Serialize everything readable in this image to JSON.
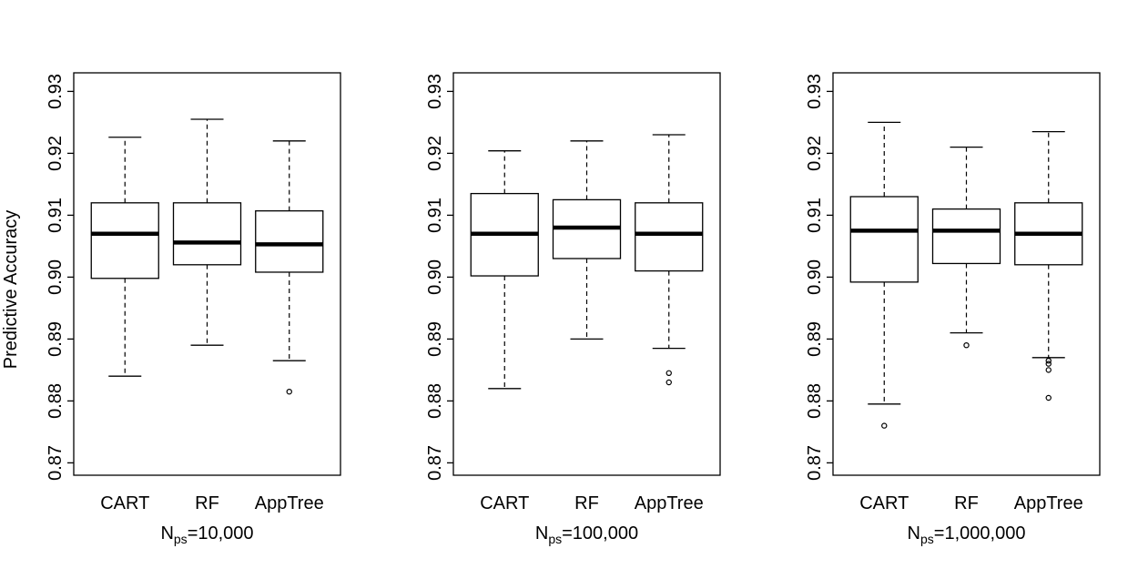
{
  "chart_data": [
    {
      "type": "boxplot",
      "ylabel": "Predictive Accuracy",
      "xlabel": {
        "main": "N",
        "sub": "ps",
        "suffix": "=10,000"
      },
      "ylim": [
        0.868,
        0.933
      ],
      "yticks": [
        "0.87",
        "0.88",
        "0.89",
        "0.90",
        "0.91",
        "0.92",
        "0.93"
      ],
      "categories": [
        "CART",
        "RF",
        "AppTree"
      ],
      "boxes": [
        {
          "name": "CART",
          "whisker_low": 0.884,
          "q1": 0.8998,
          "median": 0.907,
          "q3": 0.912,
          "whisker_high": 0.9226,
          "outliers": []
        },
        {
          "name": "RF",
          "whisker_low": 0.889,
          "q1": 0.902,
          "median": 0.9056,
          "q3": 0.912,
          "whisker_high": 0.9255,
          "outliers": []
        },
        {
          "name": "AppTree",
          "whisker_low": 0.8865,
          "q1": 0.9008,
          "median": 0.9053,
          "q3": 0.9107,
          "whisker_high": 0.922,
          "outliers": [
            0.8815
          ]
        }
      ]
    },
    {
      "type": "boxplot",
      "ylabel": "",
      "xlabel": {
        "main": "N",
        "sub": "ps",
        "suffix": "=100,000"
      },
      "ylim": [
        0.868,
        0.933
      ],
      "yticks": [
        "0.87",
        "0.88",
        "0.89",
        "0.90",
        "0.91",
        "0.92",
        "0.93"
      ],
      "categories": [
        "CART",
        "RF",
        "AppTree"
      ],
      "boxes": [
        {
          "name": "CART",
          "whisker_low": 0.882,
          "q1": 0.9002,
          "median": 0.907,
          "q3": 0.9135,
          "whisker_high": 0.9204,
          "outliers": []
        },
        {
          "name": "RF",
          "whisker_low": 0.89,
          "q1": 0.903,
          "median": 0.908,
          "q3": 0.9125,
          "whisker_high": 0.922,
          "outliers": []
        },
        {
          "name": "AppTree",
          "whisker_low": 0.8885,
          "q1": 0.901,
          "median": 0.907,
          "q3": 0.912,
          "whisker_high": 0.923,
          "outliers": [
            0.8845,
            0.883
          ]
        }
      ]
    },
    {
      "type": "boxplot",
      "ylabel": "",
      "xlabel": {
        "main": "N",
        "sub": "ps",
        "suffix": "=1,000,000"
      },
      "ylim": [
        0.868,
        0.933
      ],
      "yticks": [
        "0.87",
        "0.88",
        "0.89",
        "0.90",
        "0.91",
        "0.92",
        "0.93"
      ],
      "categories": [
        "CART",
        "RF",
        "AppTree"
      ],
      "boxes": [
        {
          "name": "CART",
          "whisker_low": 0.8795,
          "q1": 0.8992,
          "median": 0.9075,
          "q3": 0.913,
          "whisker_high": 0.925,
          "outliers": [
            0.876
          ]
        },
        {
          "name": "RF",
          "whisker_low": 0.891,
          "q1": 0.9022,
          "median": 0.9075,
          "q3": 0.911,
          "whisker_high": 0.921,
          "outliers": [
            0.889
          ]
        },
        {
          "name": "AppTree",
          "whisker_low": 0.887,
          "q1": 0.902,
          "median": 0.907,
          "q3": 0.912,
          "whisker_high": 0.9235,
          "outliers": [
            0.8865,
            0.886,
            0.885,
            0.8805
          ]
        }
      ]
    }
  ]
}
